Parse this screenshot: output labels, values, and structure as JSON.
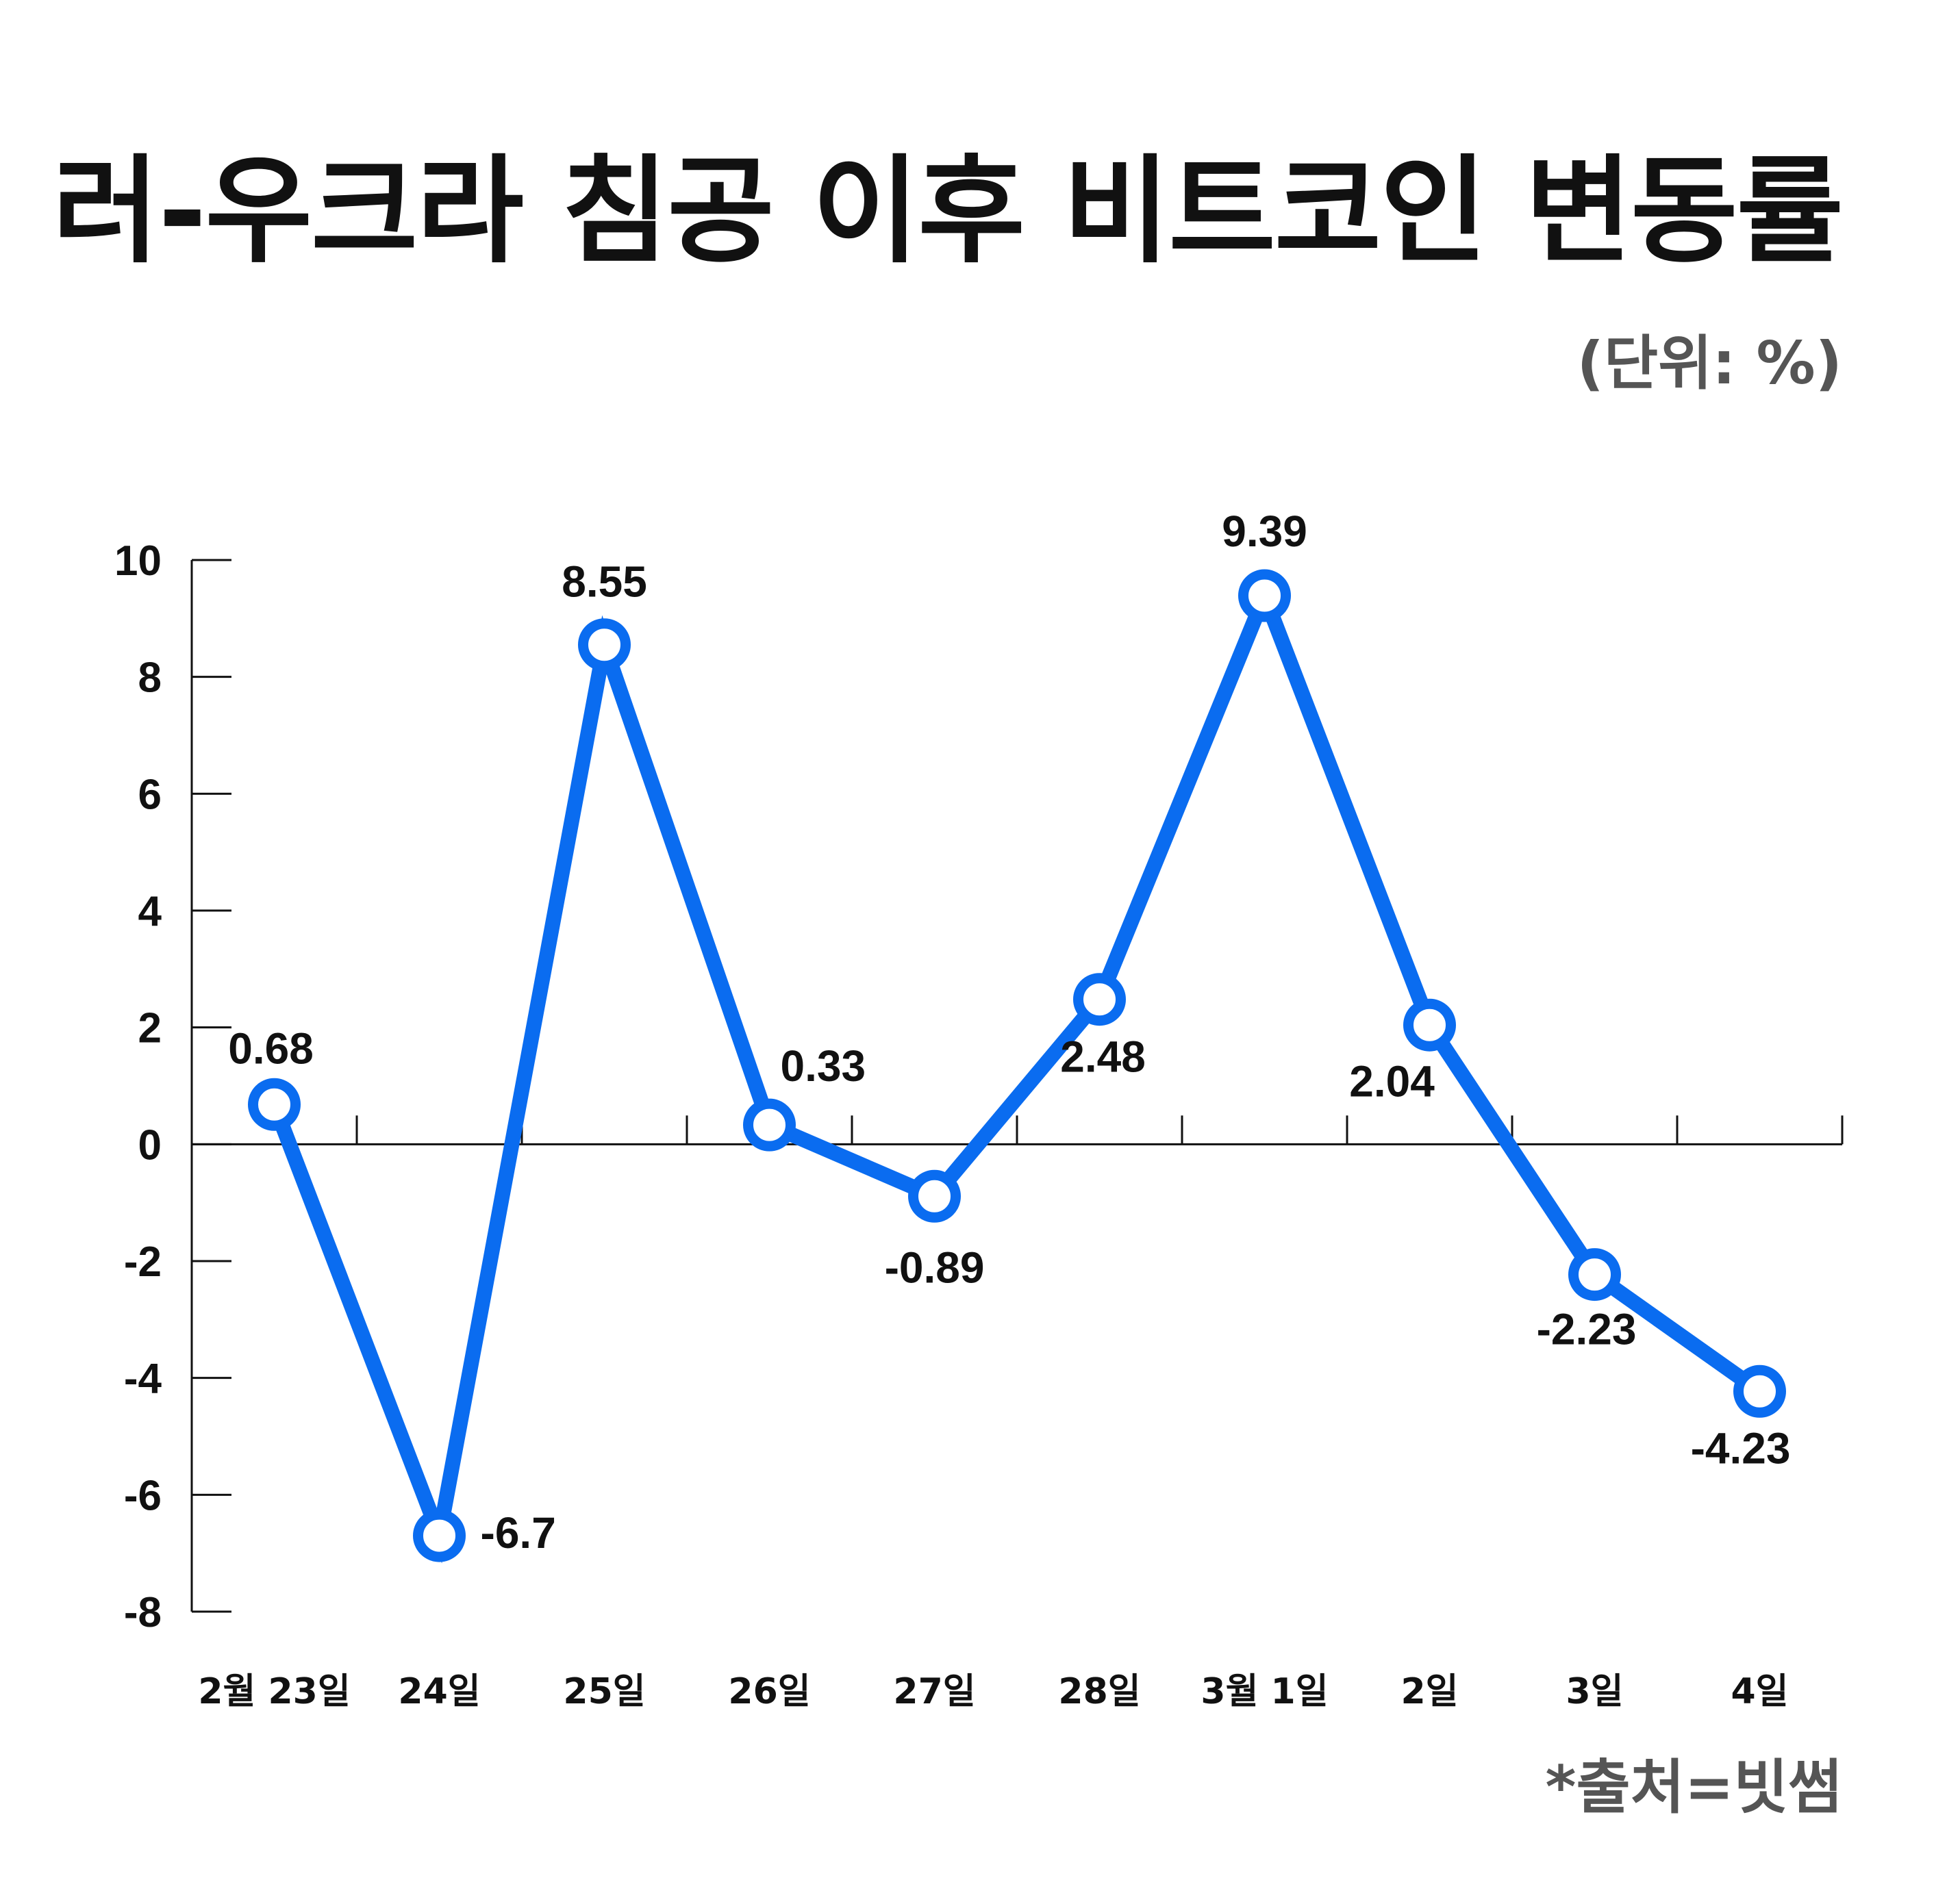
{
  "title": "러-우크라 침공 이후 비트코인 변동률",
  "unit": "(단위: %)",
  "source": "*출처=빗썸",
  "colors": {
    "line": "#0a6cf0",
    "axis": "#111111",
    "marker_fill": "#ffffff"
  },
  "chart_data": {
    "type": "line",
    "categories": [
      "2월 23일",
      "24일",
      "25일",
      "26일",
      "27일",
      "28일",
      "3월 1일",
      "2일",
      "3일",
      "4일"
    ],
    "series": [
      {
        "values": [
          0.68,
          -6.7,
          8.55,
          0.33,
          -0.89,
          2.48,
          9.39,
          2.04,
          -2.23,
          -4.23
        ]
      }
    ],
    "data_labels": [
      "0.68",
      "-6.7",
      "8.55",
      "0.33",
      "-0.89",
      "2.48",
      "9.39",
      "2.04",
      "-2.23",
      "-4.23"
    ],
    "yticks": [
      "10",
      "8",
      "6",
      "4",
      "2",
      "0",
      "-2",
      "-4",
      "-6",
      "-8"
    ],
    "ylim": [
      -8,
      10
    ],
    "grid": false,
    "legend": "none"
  }
}
